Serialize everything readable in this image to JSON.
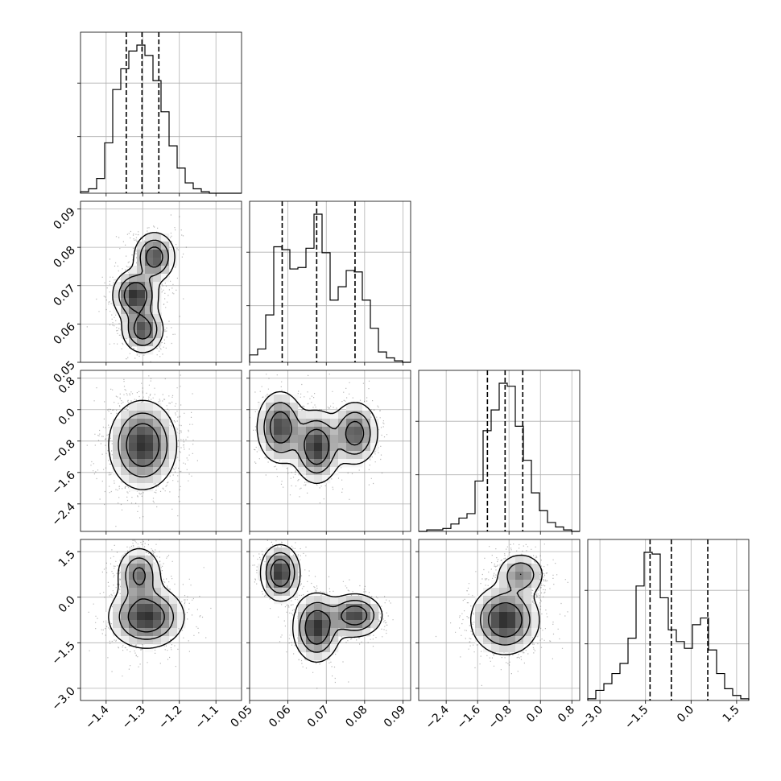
{
  "chart_data": {
    "type": "corner",
    "title": "",
    "grid": true,
    "parameters": [
      {
        "range": [
          -1.47,
          -1.03
        ],
        "ticks": [
          -1.4,
          -1.3,
          -1.2,
          -1.1
        ],
        "tick_labels": [
          "−1.4",
          "−1.3",
          "−1.2",
          "−1.1"
        ],
        "quantiles": [
          -1.345,
          -1.302,
          -1.256
        ]
      },
      {
        "range": [
          0.05,
          0.092
        ],
        "ticks": [
          0.05,
          0.06,
          0.07,
          0.08,
          0.09
        ],
        "tick_labels": [
          "0.05",
          "0.06",
          "0.07",
          "0.08",
          "0.09"
        ],
        "quantiles": [
          0.0585,
          0.0675,
          0.0775
        ]
      },
      {
        "range": [
          -3.1,
          1.0
        ],
        "ticks": [
          -2.4,
          -1.6,
          -0.8,
          0.0,
          0.8
        ],
        "tick_labels": [
          "−2.4",
          "−1.6",
          "−0.8",
          "0.0",
          "0.8"
        ],
        "quantiles": [
          -1.35,
          -0.9,
          -0.45
        ]
      },
      {
        "range": [
          -3.4,
          1.9
        ],
        "ticks": [
          -3.0,
          -1.5,
          0.0,
          1.5
        ],
        "tick_labels": [
          "−3.0",
          "−1.5",
          "0.0",
          "1.5"
        ],
        "quantiles": [
          -1.35,
          -0.65,
          0.55
        ]
      }
    ],
    "histograms": [
      {
        "param": 0,
        "counts": [
          1,
          3,
          10,
          34,
          70,
          84,
          96,
          100,
          93,
          76,
          55,
          32,
          17,
          7,
          3,
          1,
          0,
          0,
          0,
          0
        ]
      },
      {
        "param": 1,
        "counts": [
          5,
          9,
          32,
          78,
          76,
          63,
          64,
          77,
          100,
          74,
          42,
          51,
          62,
          61,
          42,
          23,
          7,
          3,
          1,
          0
        ]
      },
      {
        "param": 2,
        "counts": [
          0,
          1,
          1,
          2,
          5,
          9,
          12,
          34,
          68,
          82,
          100,
          98,
          71,
          48,
          26,
          14,
          6,
          3,
          1,
          0
        ]
      },
      {
        "param": 3,
        "counts": [
          1,
          6,
          10,
          16,
          22,
          37,
          68,
          88,
          87,
          61,
          42,
          35,
          31,
          45,
          49,
          30,
          16,
          7,
          3,
          1
        ]
      }
    ],
    "joint": [
      {
        "x": 0,
        "y": 1,
        "modes": [
          {
            "cx": -1.268,
            "cy": 0.0775,
            "sx": 0.028,
            "sy": 0.0032,
            "w": 1.0
          },
          {
            "cx": -1.32,
            "cy": 0.0675,
            "sx": 0.03,
            "sy": 0.0032,
            "w": 1.2
          },
          {
            "cx": -1.3,
            "cy": 0.0585,
            "sx": 0.028,
            "sy": 0.003,
            "w": 1.0
          }
        ]
      },
      {
        "x": 0,
        "y": 2,
        "modes": [
          {
            "cx": -1.3,
            "cy": -0.9,
            "sx": 0.045,
            "sy": 0.55,
            "w": 1.0
          }
        ]
      },
      {
        "x": 1,
        "y": 2,
        "modes": [
          {
            "cx": 0.058,
            "cy": -0.45,
            "sx": 0.003,
            "sy": 0.45,
            "w": 1.0
          },
          {
            "cx": 0.0675,
            "cy": -0.95,
            "sx": 0.003,
            "sy": 0.45,
            "w": 1.1
          },
          {
            "cx": 0.0775,
            "cy": -0.6,
            "sx": 0.003,
            "sy": 0.4,
            "w": 0.9
          }
        ]
      },
      {
        "x": 0,
        "y": 3,
        "modes": [
          {
            "cx": -1.31,
            "cy": 0.75,
            "sx": 0.03,
            "sy": 0.45,
            "w": 0.9
          },
          {
            "cx": -1.29,
            "cy": -0.65,
            "sx": 0.05,
            "sy": 0.5,
            "w": 1.3
          }
        ]
      },
      {
        "x": 1,
        "y": 3,
        "modes": [
          {
            "cx": 0.058,
            "cy": 0.8,
            "sx": 0.0025,
            "sy": 0.45,
            "w": 1.0
          },
          {
            "cx": 0.0675,
            "cy": -1.0,
            "sx": 0.003,
            "sy": 0.55,
            "w": 1.0
          },
          {
            "cx": 0.0775,
            "cy": -0.6,
            "sx": 0.0035,
            "sy": 0.35,
            "w": 0.9
          }
        ]
      },
      {
        "x": 2,
        "y": 3,
        "modes": [
          {
            "cx": -0.9,
            "cy": -0.75,
            "sx": 0.42,
            "sy": 0.55,
            "w": 1.2
          },
          {
            "cx": -0.5,
            "cy": 0.75,
            "sx": 0.3,
            "sy": 0.35,
            "w": 0.7
          }
        ]
      }
    ]
  }
}
